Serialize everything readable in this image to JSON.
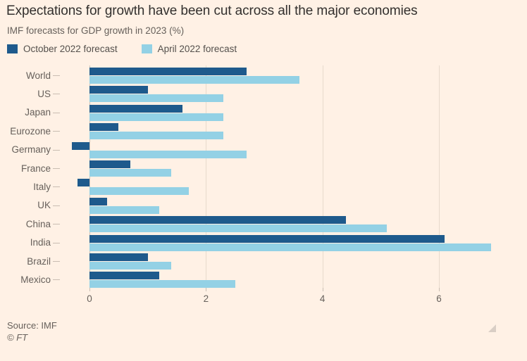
{
  "title": "Expectations for growth have been cut across all the major economies",
  "subtitle": "IMF forecasts for GDP growth in 2023 (%)",
  "source_line": "Source: IMF",
  "copyright": "© FT",
  "colors": {
    "background": "#fff1e5",
    "title_text": "#33302e",
    "secondary_text": "#66605b",
    "gridline": "#e7dacc",
    "zero_line": "#cfc2b5",
    "tick": "#c9bdb2",
    "october_bar": "#1e5a8c",
    "april_bar": "#93d1e5"
  },
  "chart_data": {
    "type": "bar",
    "orientation": "horizontal",
    "title": "Expectations for growth have been cut across all the major economies",
    "subtitle": "IMF forecasts for GDP growth in 2023 (%)",
    "categories": [
      "World",
      "US",
      "Japan",
      "Eurozone",
      "Germany",
      "France",
      "Italy",
      "UK",
      "China",
      "India",
      "Brazil",
      "Mexico"
    ],
    "series": [
      {
        "name": "October 2022 forecast",
        "color": "#1e5a8c",
        "values": [
          2.7,
          1.0,
          1.6,
          0.5,
          -0.3,
          0.7,
          -0.2,
          0.3,
          4.4,
          6.1,
          1.0,
          1.2
        ]
      },
      {
        "name": "April 2022 forecast",
        "color": "#93d1e5",
        "values": [
          3.6,
          2.3,
          2.3,
          2.3,
          2.7,
          1.4,
          1.7,
          1.2,
          5.1,
          6.9,
          1.4,
          2.5
        ]
      }
    ],
    "xlabel": "",
    "ylabel": "",
    "xticks": [
      0,
      2,
      4,
      6
    ],
    "xlim": [
      -0.5,
      7.1
    ],
    "grid": true,
    "legend_position": "top"
  }
}
